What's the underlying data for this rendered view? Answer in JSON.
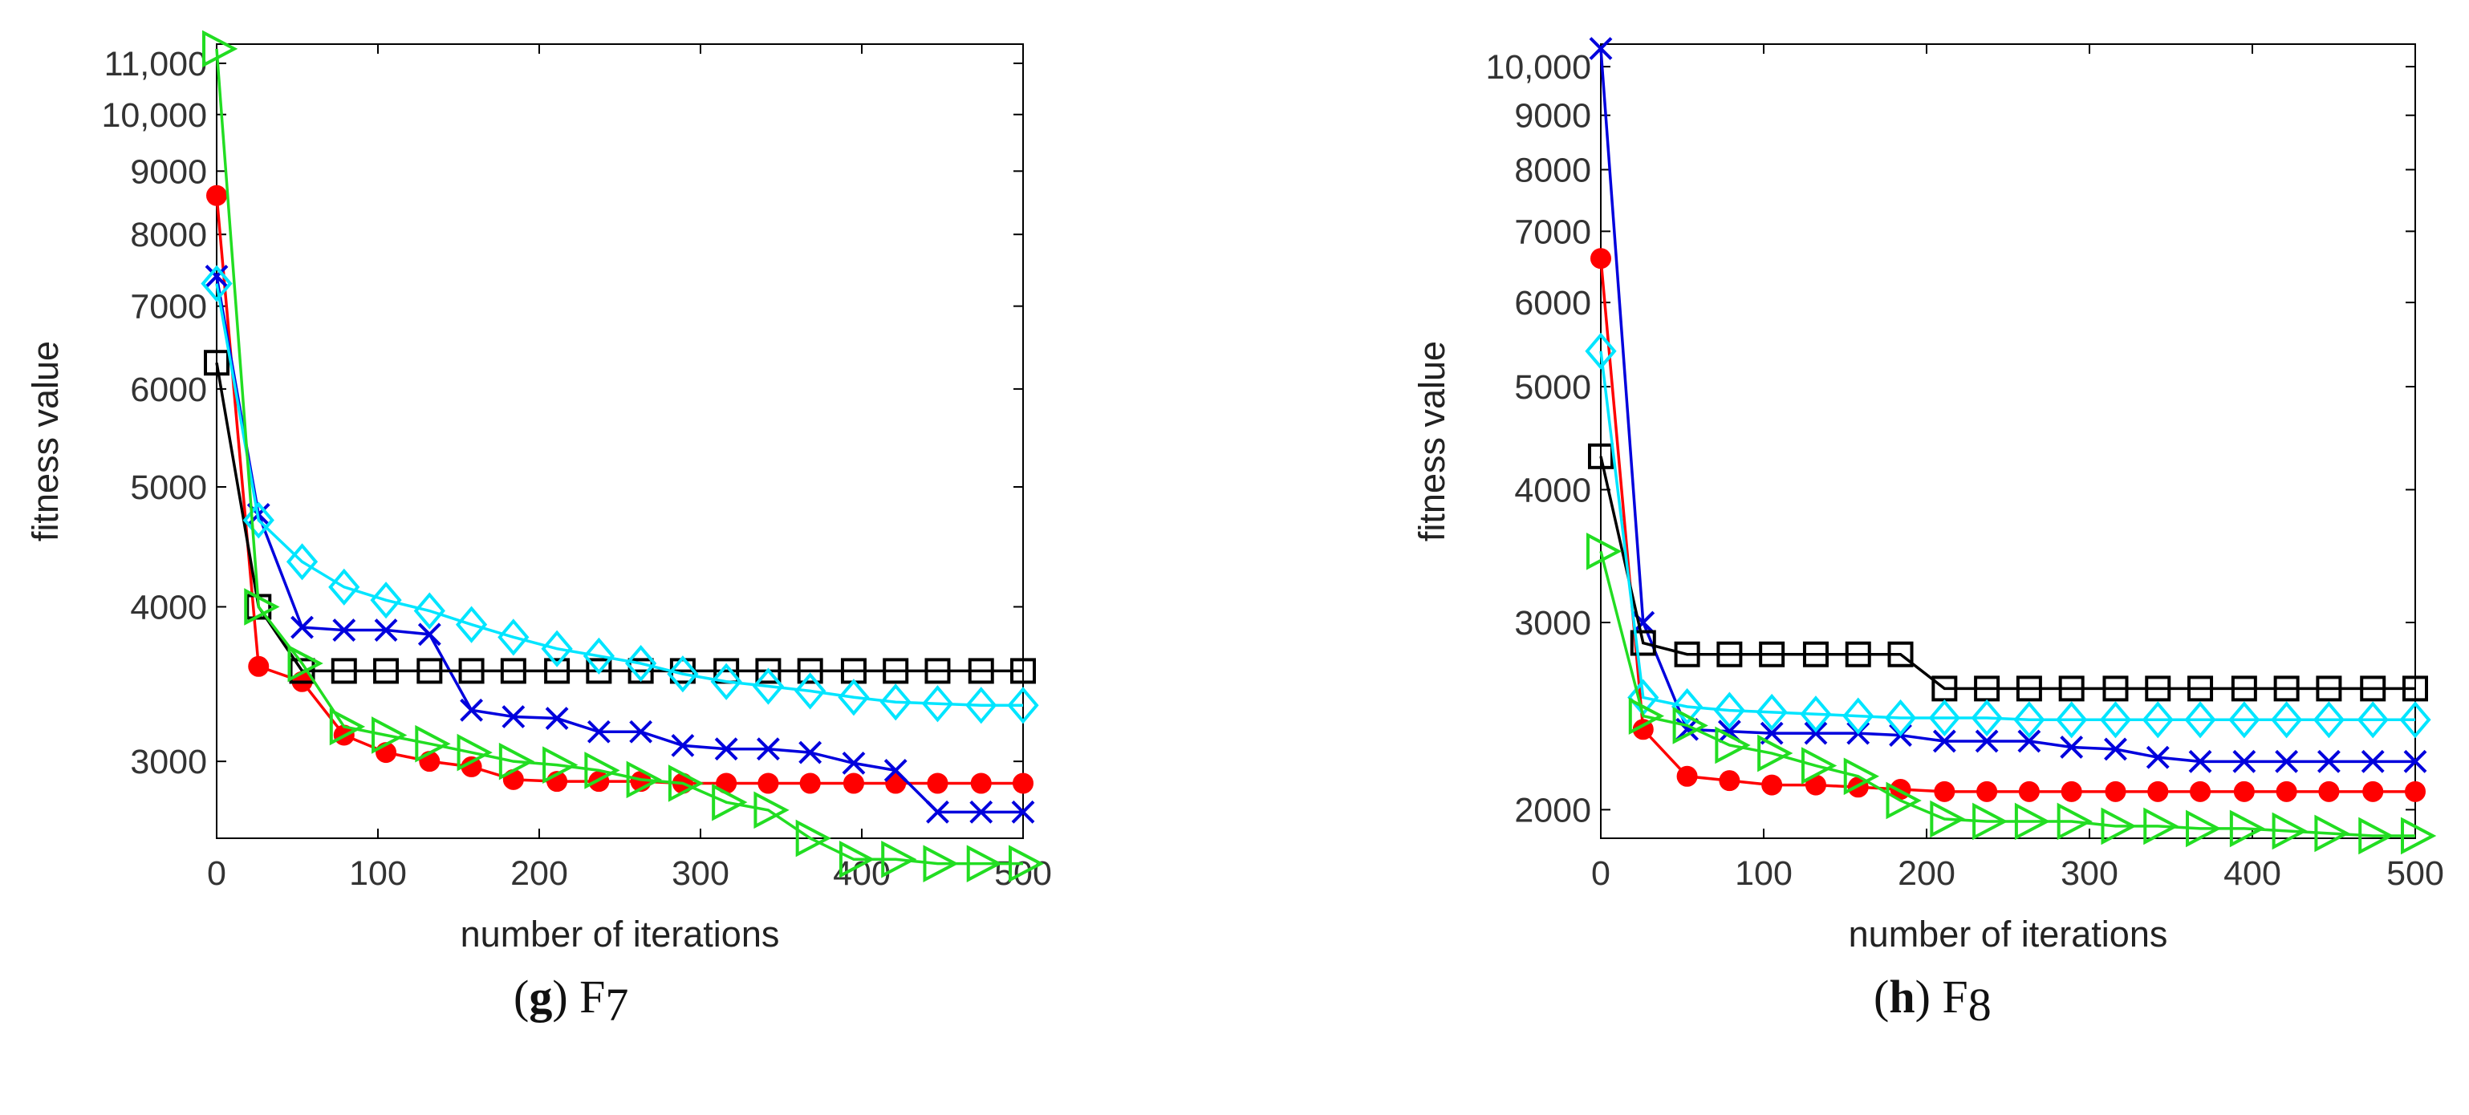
{
  "chart_data": [
    {
      "type": "line",
      "panel": "g",
      "caption_letter": "g",
      "caption_func": "F",
      "caption_sub": "7",
      "title": "",
      "xlabel": "number of iterations",
      "ylabel": "fitness value",
      "xlim": [
        0,
        500
      ],
      "ylim": [
        2600,
        11400
      ],
      "yscale": "log",
      "xticks": [
        0,
        100,
        200,
        300,
        400,
        500
      ],
      "xtick_labels": [
        "0",
        "100",
        "200",
        "300",
        "400",
        "500"
      ],
      "yticks": [
        3000,
        4000,
        5000,
        6000,
        7000,
        8000,
        9000,
        10000,
        11000
      ],
      "ytick_labels": [
        "3000",
        "4000",
        "5000",
        "6000",
        "7000",
        "8000",
        "9000",
        "10,000",
        "11,000"
      ],
      "x": [
        0,
        26,
        53,
        79,
        105,
        132,
        158,
        184,
        211,
        237,
        263,
        289,
        316,
        342,
        368,
        395,
        421,
        447,
        474,
        500
      ],
      "series": [
        {
          "name": "red",
          "color": "#ff0000",
          "marker": "circle",
          "values": [
            8600,
            3580,
            3480,
            3150,
            3050,
            3000,
            2970,
            2900,
            2890,
            2890,
            2890,
            2880,
            2880,
            2880,
            2880,
            2880,
            2880,
            2880,
            2880,
            2880
          ]
        },
        {
          "name": "blue",
          "color": "#0000dd",
          "marker": "x",
          "values": [
            7400,
            4750,
            3850,
            3830,
            3830,
            3800,
            3300,
            3260,
            3250,
            3170,
            3170,
            3090,
            3070,
            3070,
            3050,
            2990,
            2950,
            2730,
            2730,
            2730
          ]
        },
        {
          "name": "black",
          "color": "#000000",
          "marker": "square",
          "values": [
            6300,
            4000,
            3550,
            3550,
            3550,
            3550,
            3550,
            3550,
            3550,
            3550,
            3550,
            3550,
            3550,
            3550,
            3550,
            3550,
            3550,
            3550,
            3550,
            3550
          ]
        },
        {
          "name": "cyan",
          "color": "#00e5ff",
          "marker": "diamond",
          "values": [
            7300,
            4700,
            4350,
            4150,
            4050,
            3970,
            3870,
            3780,
            3700,
            3650,
            3600,
            3530,
            3480,
            3450,
            3420,
            3380,
            3350,
            3340,
            3330,
            3330
          ]
        },
        {
          "name": "green",
          "color": "#22dd22",
          "marker": "triangle-right",
          "values": [
            11300,
            4000,
            3600,
            3200,
            3150,
            3100,
            3050,
            3000,
            2980,
            2950,
            2900,
            2880,
            2780,
            2740,
            2600,
            2500,
            2500,
            2480,
            2480,
            2480
          ]
        }
      ]
    },
    {
      "type": "line",
      "panel": "h",
      "caption_letter": "h",
      "caption_func": "F",
      "caption_sub": "8",
      "title": "",
      "xlabel": "number of iterations",
      "ylabel": "fitness value",
      "xlim": [
        0,
        500
      ],
      "ylim": [
        1880,
        10500
      ],
      "yscale": "log",
      "xticks": [
        0,
        100,
        200,
        300,
        400,
        500
      ],
      "xtick_labels": [
        "0",
        "100",
        "200",
        "300",
        "400",
        "500"
      ],
      "yticks": [
        2000,
        3000,
        4000,
        5000,
        6000,
        7000,
        8000,
        9000,
        10000
      ],
      "ytick_labels": [
        "2000",
        "3000",
        "4000",
        "5000",
        "6000",
        "7000",
        "8000",
        "9000",
        "10,000"
      ],
      "x": [
        0,
        26,
        53,
        79,
        105,
        132,
        158,
        184,
        211,
        237,
        263,
        289,
        316,
        342,
        368,
        395,
        421,
        447,
        474,
        500
      ],
      "series": [
        {
          "name": "red",
          "color": "#ff0000",
          "marker": "circle",
          "values": [
            6600,
            2380,
            2150,
            2130,
            2110,
            2110,
            2100,
            2090,
            2080,
            2080,
            2080,
            2080,
            2080,
            2080,
            2080,
            2080,
            2080,
            2080,
            2080,
            2080
          ]
        },
        {
          "name": "blue",
          "color": "#0000dd",
          "marker": "x",
          "values": [
            10400,
            3000,
            2380,
            2370,
            2360,
            2360,
            2360,
            2350,
            2320,
            2320,
            2320,
            2290,
            2280,
            2240,
            2220,
            2220,
            2220,
            2220,
            2220,
            2220
          ]
        },
        {
          "name": "black",
          "color": "#000000",
          "marker": "square",
          "values": [
            4300,
            2870,
            2800,
            2800,
            2800,
            2800,
            2800,
            2800,
            2600,
            2600,
            2600,
            2600,
            2600,
            2600,
            2600,
            2600,
            2600,
            2600,
            2600,
            2600
          ]
        },
        {
          "name": "cyan",
          "color": "#00e5ff",
          "marker": "diamond",
          "values": [
            5400,
            2550,
            2500,
            2480,
            2470,
            2460,
            2450,
            2440,
            2440,
            2440,
            2430,
            2430,
            2430,
            2430,
            2430,
            2430,
            2430,
            2430,
            2430,
            2430
          ]
        },
        {
          "name": "green",
          "color": "#22dd22",
          "marker": "triangle-right",
          "values": [
            3500,
            2450,
            2400,
            2300,
            2260,
            2200,
            2150,
            2040,
            1960,
            1950,
            1950,
            1950,
            1930,
            1930,
            1920,
            1920,
            1910,
            1900,
            1890,
            1890
          ]
        }
      ]
    }
  ]
}
